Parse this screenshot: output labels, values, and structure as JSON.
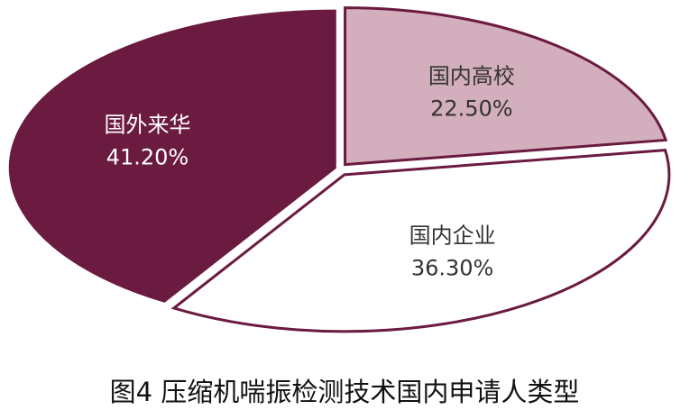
{
  "chart_data": {
    "type": "pie",
    "title": "图4  压缩机喘振检测技术国内申请人类型",
    "categories": [
      "国内高校",
      "国内企业",
      "国外来华"
    ],
    "values": [
      22.5,
      36.3,
      41.2
    ],
    "value_labels": [
      "22.50%",
      "36.30%",
      "41.20%"
    ],
    "colors": [
      "#d3aebd",
      "#ffffff",
      "#6b1a40"
    ],
    "edge_color": "#6b1a40"
  }
}
